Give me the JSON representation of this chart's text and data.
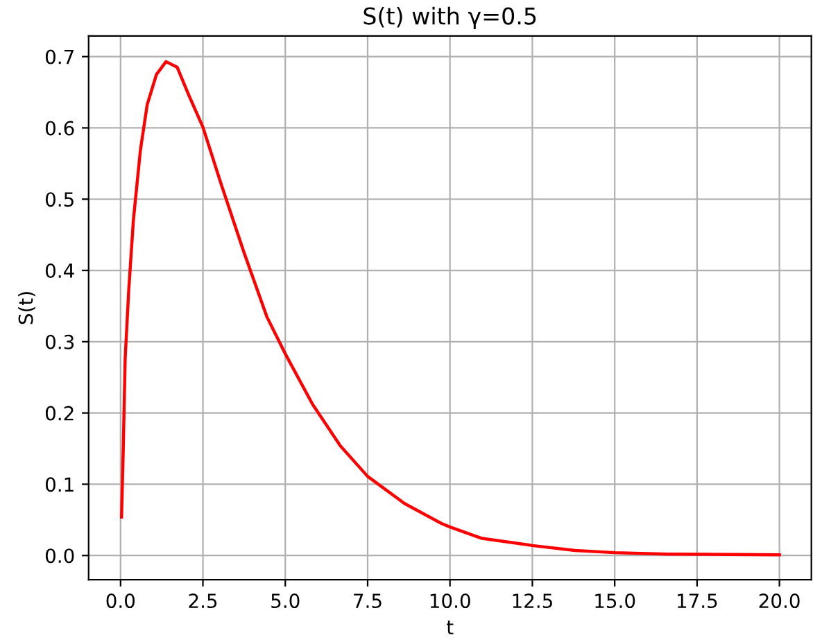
{
  "chart_data": {
    "type": "line",
    "title": "S(t) with γ=0.5",
    "xlabel": "t",
    "ylabel": "S(t)",
    "series": [
      {
        "color": "#ff0000",
        "x": [
          0.03,
          0.08,
          0.14,
          0.25,
          0.39,
          0.6,
          0.81,
          1.09,
          1.38,
          1.72,
          2.07,
          2.5,
          3.04,
          3.74,
          4.44,
          5.0,
          5.83,
          6.67,
          7.5,
          8.62,
          9.74,
          10.0,
          10.97,
          12.5,
          13.8,
          15.0,
          16.6,
          20.0
        ],
        "values": [
          0.054,
          0.147,
          0.277,
          0.374,
          0.471,
          0.568,
          0.633,
          0.675,
          0.693,
          0.685,
          0.646,
          0.601,
          0.523,
          0.426,
          0.335,
          0.283,
          0.212,
          0.154,
          0.111,
          0.073,
          0.045,
          0.04,
          0.024,
          0.014,
          0.007,
          0.004,
          0.002,
          0.001
        ]
      }
    ],
    "xlim": [
      -0.97,
      20.97
    ],
    "ylim": [
      -0.034,
      0.729
    ],
    "xticks": [
      {
        "value": 0,
        "label": "0.0"
      },
      2.5,
      {
        "value": 5,
        "label": "5.0"
      },
      7.5,
      {
        "value": 10,
        "label": "10.0"
      },
      12.5,
      {
        "value": 15,
        "label": "15.0"
      },
      17.5,
      {
        "value": 20,
        "label": "20.0"
      }
    ],
    "yticks": [
      {
        "value": 0,
        "label": "0.0"
      },
      0.1,
      0.2,
      0.3,
      0.4,
      0.5,
      0.6,
      0.7
    ],
    "grid": true,
    "marker": "none",
    "line_style": "solid"
  }
}
